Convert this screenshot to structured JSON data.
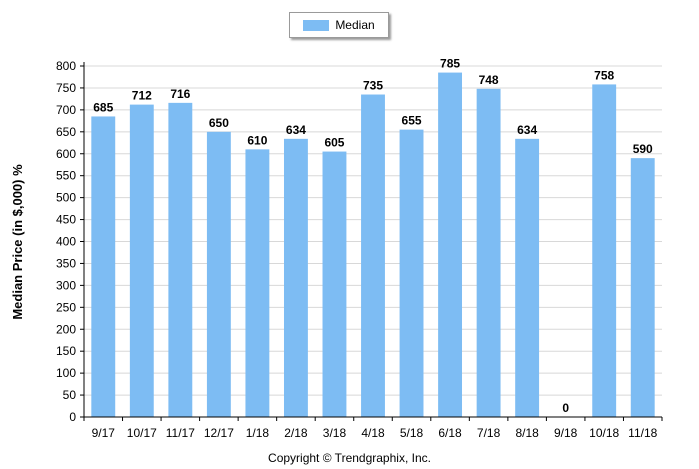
{
  "chart_data": {
    "type": "bar",
    "categories": [
      "9/17",
      "10/17",
      "11/17",
      "12/17",
      "1/18",
      "2/18",
      "3/18",
      "4/18",
      "5/18",
      "6/18",
      "7/18",
      "8/18",
      "9/18",
      "10/18",
      "11/18"
    ],
    "series": [
      {
        "name": "Median",
        "values": [
          685,
          712,
          716,
          650,
          610,
          634,
          605,
          735,
          655,
          785,
          748,
          634,
          0,
          758,
          590
        ],
        "color": "#7dbcf3"
      }
    ],
    "data_labels": [
      "685",
      "712",
      "716",
      "650",
      "610",
      "634",
      "605",
      "735",
      "655",
      "785",
      "748",
      "634",
      "0",
      "758",
      "590"
    ],
    "ylabel": "Median Price (in $,000) %",
    "xlabel": "",
    "ylim": [
      0,
      800
    ],
    "yticks": [
      0,
      50,
      100,
      150,
      200,
      250,
      300,
      350,
      400,
      450,
      500,
      550,
      600,
      650,
      700,
      750,
      800
    ],
    "legend": {
      "position": "top-center",
      "label": "Median"
    },
    "grid": true,
    "gridColor": "#d8d8d8"
  },
  "footer": {
    "copyright": "Copyright © Trendgraphix, Inc."
  }
}
